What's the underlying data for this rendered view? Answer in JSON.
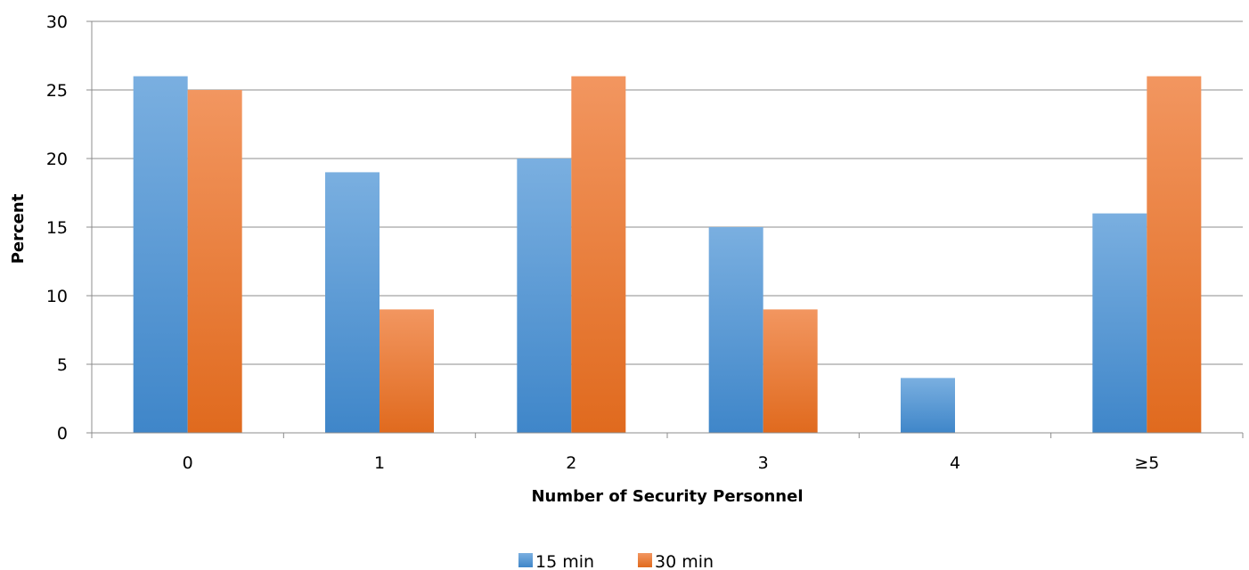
{
  "chart_data": {
    "type": "bar",
    "title": "",
    "xlabel": "Number of Security Personnel",
    "ylabel": "Percent",
    "categories": [
      "0",
      "1",
      "2",
      "3",
      "4",
      "≥5"
    ],
    "series": [
      {
        "name": "15 min",
        "values": [
          26,
          19,
          20,
          15,
          4,
          16
        ],
        "color": "#5B9BD5"
      },
      {
        "name": "30 min",
        "values": [
          25,
          9,
          26,
          9,
          0,
          26
        ],
        "color": "#ED7D31"
      }
    ],
    "ylim": [
      0,
      30
    ],
    "yticks": [
      0,
      5,
      10,
      15,
      20,
      25,
      30
    ],
    "grid": true,
    "legend_position": "bottom"
  }
}
